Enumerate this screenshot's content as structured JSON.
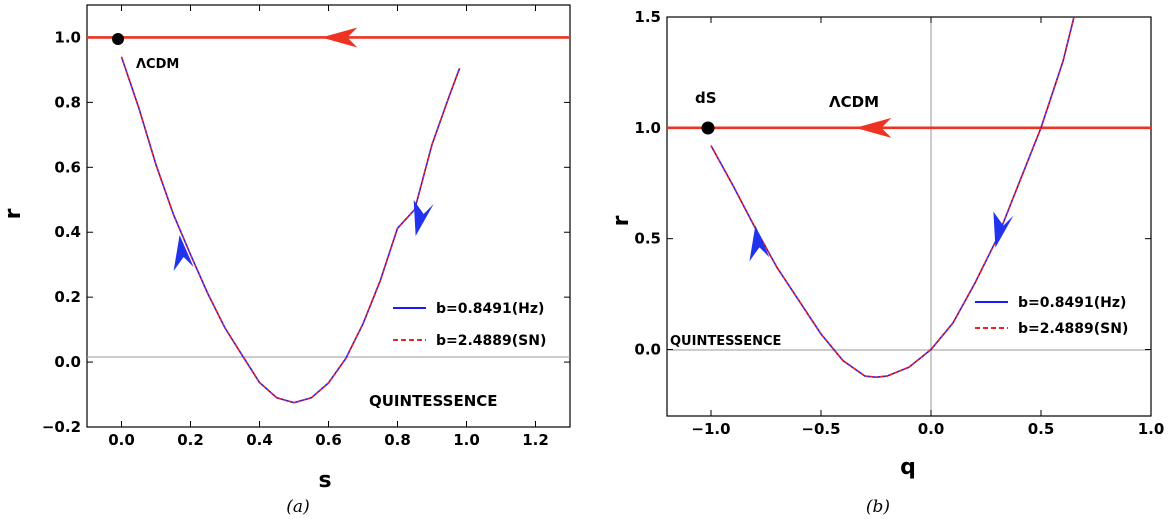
{
  "chart_data": [
    {
      "id": "a",
      "type": "line",
      "caption": "(a)",
      "xlabel": "s",
      "ylabel": "r",
      "xlim": [
        -0.1,
        1.3
      ],
      "ylim": [
        -0.2,
        1.1
      ],
      "xticks": [
        0.0,
        0.2,
        0.4,
        0.6,
        0.8,
        1.0,
        1.2
      ],
      "xtick_labels": [
        "0.0",
        "0.2",
        "0.4",
        "0.6",
        "0.8",
        "1.0",
        "1.2"
      ],
      "yticks": [
        -0.2,
        0.0,
        0.2,
        0.4,
        0.6,
        0.8,
        1.0
      ],
      "ytick_labels": [
        "−0.2",
        "0.0",
        "0.2",
        "0.4",
        "0.6",
        "0.8",
        "1.0"
      ],
      "zero_line_y": 0.0,
      "horizontal_line": {
        "y": 1.0,
        "color": "#ee3322",
        "arrow_x": 0.62,
        "direction": "left"
      },
      "fixed_point": {
        "x": 0.0,
        "y": 1.0,
        "label": "ΛCDM"
      },
      "region_label": {
        "text": "QUINTESSENCE",
        "x": 1.0,
        "y": -0.13
      },
      "series": [
        {
          "name": "b=0.8491(Hz)",
          "color": "#1a1aff",
          "dash": "solid",
          "x": [
            0.0,
            0.05,
            0.1,
            0.15,
            0.2,
            0.25,
            0.3,
            0.35,
            0.4,
            0.45,
            0.5,
            0.55,
            0.6,
            0.65,
            0.7,
            0.75,
            0.8,
            0.85,
            0.9,
            0.95,
            0.98
          ],
          "y": [
            0.94,
            0.783,
            0.608,
            0.456,
            0.331,
            0.211,
            0.105,
            0.021,
            -0.063,
            -0.11,
            -0.125,
            -0.11,
            -0.064,
            0.011,
            0.118,
            0.251,
            0.412,
            0.47,
            0.67,
            0.82,
            0.905
          ]
        },
        {
          "name": "b=2.4889(SN)",
          "color": "#ee2222",
          "dash": "dashed",
          "x": [
            0.0,
            0.05,
            0.1,
            0.15,
            0.2,
            0.25,
            0.3,
            0.35,
            0.4,
            0.45,
            0.5,
            0.55,
            0.6,
            0.65,
            0.7,
            0.75,
            0.8,
            0.85,
            0.9,
            0.95,
            0.98
          ],
          "y": [
            0.94,
            0.783,
            0.608,
            0.456,
            0.331,
            0.211,
            0.105,
            0.021,
            -0.063,
            -0.11,
            -0.125,
            -0.11,
            -0.064,
            0.011,
            0.118,
            0.251,
            0.412,
            0.47,
            0.67,
            0.82,
            0.905
          ]
        }
      ],
      "flow_arrows": [
        {
          "x": 0.18,
          "y": 0.33,
          "direction": "up"
        },
        {
          "x": 0.87,
          "y": 0.45,
          "direction": "down"
        }
      ],
      "legend": "right"
    },
    {
      "id": "b",
      "type": "line",
      "caption": "(b)",
      "xlabel": "q",
      "ylabel": "r",
      "xlim": [
        -1.2,
        1.0
      ],
      "ylim": [
        -0.3,
        1.5
      ],
      "xticks": [
        -1.0,
        -0.5,
        0.0,
        0.5,
        1.0
      ],
      "xtick_labels": [
        "−1.0",
        "−0.5",
        "0.0",
        "0.5",
        "1.0"
      ],
      "yticks": [
        0.0,
        0.5,
        1.0,
        1.5
      ],
      "ytick_labels": [
        "0.0",
        "0.5",
        "1.0",
        "1.5"
      ],
      "zero_line_y": 0.0,
      "zero_line_x": 0.0,
      "horizontal_line": {
        "y": 1.0,
        "color": "#ee3322",
        "arrow_x": -0.28,
        "direction": "left"
      },
      "fixed_point": {
        "x": -1.0,
        "y": 1.0,
        "label": "dS"
      },
      "ann_label": {
        "text": "ΛCDM",
        "x": -0.3,
        "y": 1.17
      },
      "region_label": {
        "text": "QUINTESSENCE",
        "x": -0.9,
        "y": 0.08
      },
      "series": [
        {
          "name": "b=0.8491(Hz)",
          "color": "#1a1aff",
          "dash": "solid",
          "x": [
            -1.0,
            -0.9,
            -0.8,
            -0.7,
            -0.6,
            -0.5,
            -0.4,
            -0.3,
            -0.25,
            -0.2,
            -0.1,
            0.0,
            0.1,
            0.2,
            0.3,
            0.4,
            0.5,
            0.6,
            0.65
          ],
          "y": [
            0.92,
            0.74,
            0.55,
            0.37,
            0.22,
            0.07,
            -0.05,
            -0.12,
            -0.125,
            -0.12,
            -0.08,
            0.0,
            0.12,
            0.3,
            0.5,
            0.75,
            1.0,
            1.3,
            1.5
          ]
        },
        {
          "name": "b=2.4889(SN)",
          "color": "#ee2222",
          "dash": "dashed",
          "x": [
            -1.0,
            -0.9,
            -0.8,
            -0.7,
            -0.6,
            -0.5,
            -0.4,
            -0.3,
            -0.25,
            -0.2,
            -0.1,
            0.0,
            0.1,
            0.2,
            0.3,
            0.4,
            0.5,
            0.6,
            0.65
          ],
          "y": [
            0.92,
            0.74,
            0.55,
            0.37,
            0.22,
            0.07,
            -0.05,
            -0.12,
            -0.125,
            -0.12,
            -0.08,
            0.0,
            0.12,
            0.3,
            0.5,
            0.75,
            1.0,
            1.3,
            1.5
          ]
        }
      ],
      "flow_arrows": [
        {
          "x": -0.78,
          "y": 0.47,
          "direction": "up"
        },
        {
          "x": 0.32,
          "y": 0.55,
          "direction": "down"
        }
      ],
      "legend": "right"
    }
  ]
}
